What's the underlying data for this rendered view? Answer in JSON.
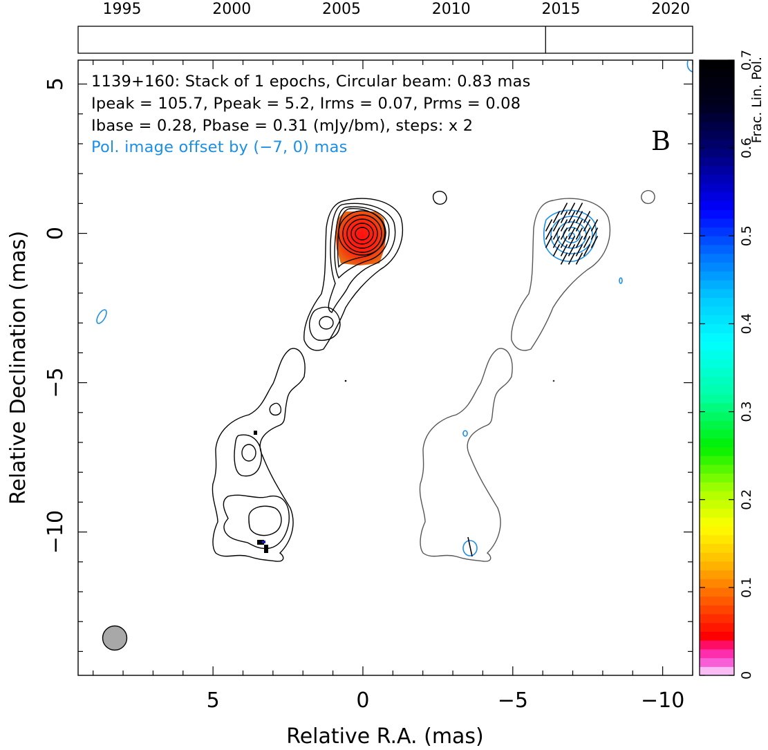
{
  "chart_data": {
    "type": "contour",
    "title": "",
    "xlabel": "Relative R.A. (mas)",
    "ylabel": "Relative Declination (mas)",
    "xlim": [
      9.5,
      -11.0
    ],
    "ylim": [
      -14.8,
      5.8
    ],
    "x_ticks": [
      5,
      0,
      -5,
      -10
    ],
    "x_tick_labels": [
      "5",
      "0",
      "−5",
      "−10"
    ],
    "y_ticks": [
      5,
      0,
      -5,
      -10
    ],
    "y_tick_labels": [
      "5",
      "0",
      "−5",
      "−10"
    ],
    "annotations": [
      "1139+160: Stack of 1 epochs, Circular beam: 0.83 mas",
      "Ipeak = 105.7, Ppeak = 5.2, Irms = 0.07, Prms = 0.08",
      "Ibase = 0.28, Pbase = 0.31 (mJy/bm), steps: x 2",
      "Pol. image offset by (−7, 0) mas"
    ],
    "panel_label": "B",
    "epoch_axis": {
      "range": [
        1993.0,
        2021.0
      ],
      "ticks": [
        1995,
        2000,
        2005,
        2010,
        2015,
        2020
      ],
      "tick_labels": [
        "1995",
        "2000",
        "2005",
        "2010",
        "2015",
        "2020"
      ],
      "epochs": [
        2014.3
      ]
    },
    "colorbar": {
      "label": "Frac. Lin. Pol.",
      "range": [
        0,
        0.7
      ],
      "ticks": [
        0,
        0.1,
        0.2,
        0.3,
        0.4,
        0.5,
        0.6,
        0.7
      ],
      "tick_labels": [
        "0",
        "0.1",
        "0.2",
        "0.3",
        "0.4",
        "0.5",
        "0.6",
        "0.7"
      ]
    },
    "beam": {
      "shape": "circular",
      "fwhm_mas": 0.83
    },
    "pol_offset_mas": [
      -7,
      0
    ],
    "colors": {
      "stokes_i_contours": "#000000",
      "pol_total_i_contours": "#555555",
      "pol_intensity_contours": "#1b8fe8",
      "annotation_blue": "#1b8fe8",
      "beam_fill": "#a8a8a8"
    }
  }
}
